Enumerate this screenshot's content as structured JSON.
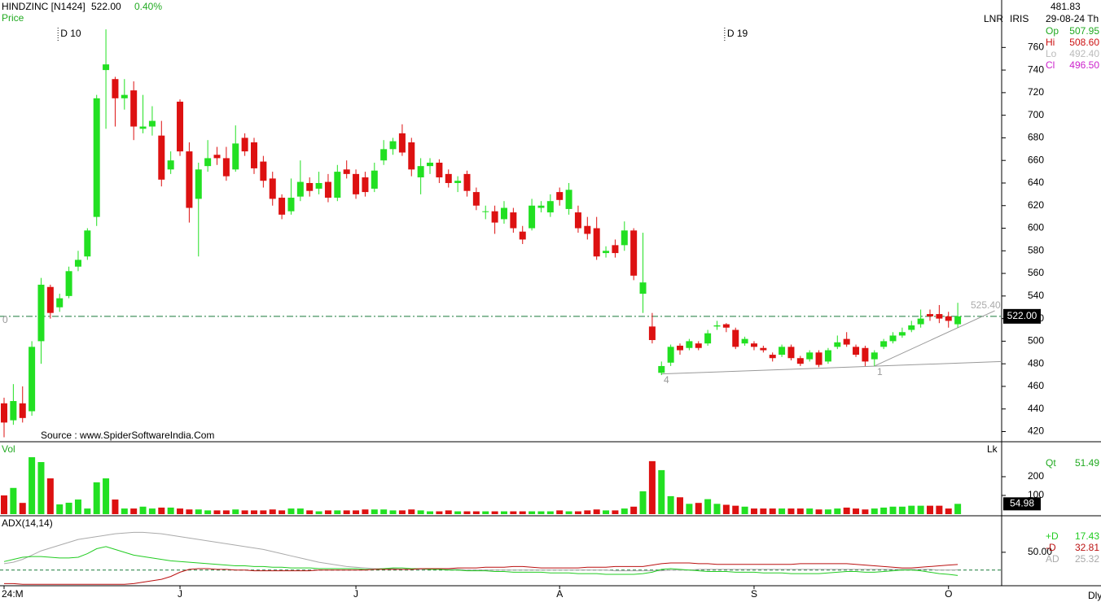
{
  "header": {
    "symbol": "HINDZINC [N1424]",
    "price": "522.00",
    "change": "0.40%",
    "sublabel": "Price"
  },
  "info": {
    "value": "481.83",
    "date": "29-08-24 Th",
    "tags": [
      "LNR",
      "IRIS"
    ],
    "ohlc": [
      {
        "name": "Op",
        "value": "507.95"
      },
      {
        "name": "Hi",
        "value": "508.60"
      },
      {
        "name": "Lo",
        "value": "492.40"
      },
      {
        "name": "Cl",
        "value": "496.50"
      }
    ]
  },
  "footer": "Dly",
  "chart_data": [
    {
      "type": "candlestick",
      "source": "Source : www.SpiderSoftwareIndia.Com",
      "markers": [
        "D 10",
        "D 19"
      ],
      "annotations": [
        "0",
        "4",
        "1"
      ],
      "trend_label": "525.40",
      "last_price": {
        "value": 522,
        "label": "522.00"
      },
      "up_color": "#22e022",
      "down_color": "#dd1111",
      "categories": [
        "24:M",
        null,
        null,
        null,
        null,
        null,
        null,
        null,
        null,
        null,
        null,
        null,
        null,
        null,
        null,
        null,
        null,
        null,
        null,
        "J",
        null,
        null,
        null,
        null,
        null,
        null,
        null,
        null,
        null,
        null,
        null,
        null,
        null,
        null,
        null,
        null,
        null,
        null,
        "J",
        null,
        null,
        null,
        null,
        null,
        null,
        null,
        null,
        null,
        null,
        null,
        null,
        null,
        null,
        null,
        null,
        null,
        null,
        null,
        null,
        null,
        "A",
        null,
        null,
        null,
        null,
        null,
        null,
        null,
        null,
        null,
        null,
        null,
        null,
        null,
        null,
        null,
        null,
        null,
        null,
        null,
        null,
        "S",
        null,
        null,
        null,
        null,
        null,
        null,
        null,
        null,
        null,
        null,
        null,
        null,
        null,
        null,
        null,
        null,
        null,
        null,
        null,
        null,
        "O",
        null
      ],
      "open": [
        445,
        430,
        445,
        438,
        500,
        548,
        530,
        540,
        566,
        575,
        610,
        740,
        732,
        715,
        722,
        688,
        690,
        682,
        652,
        712,
        668,
        626,
        655,
        665,
        662,
        652,
        680,
        676,
        659,
        644,
        627,
        615,
        628,
        640,
        635,
        641,
        627,
        652,
        648,
        645,
        635,
        660,
        670,
        684,
        676,
        645,
        655,
        658,
        648,
        640,
        648,
        632,
        615,
        615,
        608,
        614,
        597,
        600,
        618,
        614,
        632,
        617,
        614,
        602,
        600,
        578,
        585,
        585,
        598,
        542,
        513,
        472,
        481,
        496,
        494,
        498,
        498,
        513,
        515,
        510,
        498,
        498,
        494,
        488,
        488,
        495,
        485,
        484,
        490,
        482,
        495,
        502,
        495,
        494,
        484,
        495,
        500,
        505,
        510,
        515,
        524,
        524,
        522,
        515
      ],
      "high": [
        450,
        462,
        460,
        500,
        556,
        550,
        542,
        566,
        580,
        600,
        718,
        776,
        734,
        732,
        730,
        718,
        708,
        695,
        668,
        714,
        676,
        658,
        678,
        672,
        672,
        691,
        684,
        680,
        664,
        650,
        630,
        644,
        660,
        645,
        650,
        648,
        656,
        660,
        652,
        650,
        658,
        678,
        680,
        692,
        680,
        662,
        662,
        661,
        652,
        646,
        651,
        636,
        620,
        620,
        624,
        618,
        602,
        626,
        624,
        630,
        636,
        640,
        620,
        610,
        610,
        584,
        590,
        606,
        600,
        596,
        525,
        482,
        497,
        498,
        502,
        500,
        510,
        518,
        516,
        512,
        504,
        500,
        496,
        490,
        497,
        497,
        487,
        492,
        492,
        494,
        505,
        508,
        497,
        496,
        492,
        502,
        508,
        512,
        518,
        528,
        528,
        532,
        526,
        534
      ],
      "low": [
        415,
        426,
        428,
        434,
        480,
        520,
        526,
        538,
        562,
        572,
        602,
        688,
        690,
        705,
        678,
        684,
        682,
        637,
        648,
        664,
        605,
        575,
        650,
        656,
        642,
        650,
        664,
        648,
        636,
        620,
        608,
        612,
        624,
        628,
        630,
        623,
        624,
        644,
        626,
        628,
        632,
        656,
        665,
        664,
        646,
        630,
        648,
        640,
        636,
        632,
        628,
        616,
        608,
        595,
        604,
        596,
        586,
        598,
        614,
        610,
        620,
        612,
        596,
        590,
        572,
        574,
        574,
        580,
        554,
        525,
        498,
        470,
        478,
        488,
        492,
        492,
        496,
        510,
        508,
        493,
        496,
        492,
        490,
        482,
        486,
        483,
        478,
        482,
        477,
        480,
        493,
        495,
        486,
        478,
        478,
        493,
        498,
        503,
        508,
        512,
        518,
        516,
        512,
        512
      ],
      "close": [
        428,
        447,
        432,
        495,
        550,
        525,
        538,
        562,
        572,
        598,
        715,
        745,
        715,
        718,
        690,
        690,
        695,
        643,
        660,
        668,
        618,
        652,
        662,
        662,
        646,
        675,
        668,
        653,
        642,
        626,
        612,
        627,
        641,
        633,
        640,
        627,
        650,
        648,
        630,
        632,
        651,
        670,
        677,
        667,
        652,
        655,
        658,
        645,
        640,
        642,
        633,
        620,
        615,
        605,
        618,
        600,
        590,
        620,
        620,
        624,
        625,
        634,
        600,
        595,
        575,
        580,
        578,
        598,
        558,
        552,
        501,
        478,
        495,
        492,
        500,
        494,
        507,
        514,
        512,
        495,
        502,
        495,
        492,
        485,
        495,
        485,
        480,
        490,
        479,
        492,
        499,
        497,
        488,
        482,
        490,
        500,
        505,
        508,
        514,
        520,
        522,
        520,
        518,
        522
      ],
      "trendlines": [
        {
          "x": [
            71,
            109
          ],
          "y": [
            471,
            482
          ]
        },
        {
          "x": [
            94,
            107
          ],
          "y": [
            478,
            527
          ]
        }
      ],
      "ylim": [
        411,
        802
      ],
      "yticks": [
        420,
        440,
        460,
        480,
        500,
        520,
        540,
        560,
        580,
        600,
        620,
        640,
        660,
        680,
        700,
        720,
        740,
        760
      ]
    },
    {
      "type": "bar",
      "title": "Vol",
      "unit": "Lk",
      "legend": {
        "name": "Qt",
        "value": "51.49"
      },
      "values": [
        100,
        140,
        60,
        304,
        278,
        191,
        52,
        61,
        78,
        30,
        170,
        191,
        78,
        30,
        30,
        40,
        30,
        35,
        35,
        30,
        25,
        25,
        20,
        20,
        20,
        25,
        20,
        20,
        20,
        25,
        20,
        30,
        30,
        20,
        15,
        20,
        20,
        20,
        20,
        25,
        25,
        25,
        20,
        20,
        25,
        20,
        15,
        15,
        20,
        15,
        15,
        15,
        15,
        15,
        15,
        15,
        15,
        15,
        15,
        15,
        20,
        15,
        15,
        20,
        25,
        20,
        20,
        30,
        40,
        122,
        283,
        235,
        96,
        90,
        55,
        60,
        80,
        55,
        50,
        45,
        40,
        30,
        30,
        30,
        30,
        30,
        30,
        30,
        25,
        25,
        30,
        35,
        30,
        25,
        30,
        35,
        40,
        40,
        45,
        45,
        45,
        45,
        30,
        54.98
      ],
      "ylim": [
        0,
        378
      ],
      "yticks": [
        100,
        200
      ]
    },
    {
      "type": "line",
      "title": "ADX(14,14)",
      "level": 25,
      "series": [
        {
          "name": "AD",
          "color": "#aaaaaa",
          "values": [
            34,
            36,
            40,
            46,
            52,
            56,
            60,
            64,
            68,
            70,
            72,
            74,
            76,
            77,
            78,
            78,
            77,
            76,
            74,
            72,
            70,
            68,
            66,
            64,
            62,
            60,
            58,
            56,
            54,
            51,
            48,
            45,
            42,
            39,
            36,
            34,
            32,
            30,
            29,
            28,
            27,
            27,
            27,
            26,
            26,
            26,
            26,
            26,
            26,
            26,
            25,
            25,
            25,
            25,
            25,
            25,
            25,
            25,
            25,
            25,
            25,
            25,
            25,
            25,
            25,
            25,
            24,
            24,
            24,
            24,
            24,
            24,
            25,
            25,
            25,
            26,
            26,
            26,
            26,
            26,
            26,
            26,
            26,
            26,
            26,
            26,
            26,
            26,
            26,
            26,
            26,
            26,
            26,
            26,
            26,
            26,
            26,
            26,
            26,
            26,
            26,
            25,
            25,
            25.32
          ]
        },
        {
          "name": "+D",
          "color": "#22cc22",
          "values": [
            37,
            40,
            43,
            44,
            44,
            43,
            42,
            42,
            43,
            48,
            55,
            58,
            54,
            50,
            46,
            44,
            42,
            40,
            38,
            37,
            36,
            35,
            34,
            33,
            32,
            31,
            31,
            30,
            30,
            29,
            29,
            28,
            28,
            28,
            27,
            27,
            27,
            27,
            27,
            26,
            26,
            27,
            28,
            28,
            27,
            27,
            26,
            26,
            25,
            25,
            24,
            24,
            24,
            23,
            23,
            22,
            22,
            22,
            22,
            21,
            21,
            21,
            20,
            20,
            20,
            19,
            19,
            19,
            19,
            20,
            22,
            26,
            27,
            26,
            25,
            24,
            23,
            23,
            23,
            22,
            22,
            22,
            21,
            21,
            21,
            20,
            20,
            20,
            20,
            21,
            22,
            23,
            23,
            22,
            22,
            23,
            24,
            25,
            25,
            24,
            22,
            20,
            19,
            17.43
          ]
        },
        {
          "name": "-D",
          "color": "#bb1111",
          "values": [
            6,
            6,
            5,
            5,
            5,
            5,
            5,
            5,
            5,
            5,
            5,
            5,
            5,
            5,
            6,
            8,
            10,
            12,
            16,
            22,
            26,
            27,
            27,
            26,
            26,
            25,
            25,
            24,
            24,
            24,
            24,
            24,
            24,
            24,
            25,
            25,
            25,
            25,
            25,
            25,
            26,
            26,
            26,
            26,
            26,
            27,
            27,
            27,
            27,
            28,
            28,
            28,
            29,
            29,
            29,
            30,
            30,
            29,
            28,
            28,
            28,
            28,
            28,
            29,
            29,
            29,
            30,
            30,
            30,
            30,
            32,
            34,
            35,
            35,
            35,
            34,
            34,
            33,
            33,
            33,
            33,
            33,
            33,
            33,
            33,
            33,
            34,
            34,
            34,
            34,
            34,
            34,
            33,
            32,
            31,
            30,
            29,
            28,
            28,
            29,
            30,
            31,
            32,
            32.81
          ]
        }
      ],
      "ylim": [
        3,
        99
      ],
      "yticks": [
        {
          "value": 50,
          "label": "50.00"
        }
      ]
    }
  ]
}
